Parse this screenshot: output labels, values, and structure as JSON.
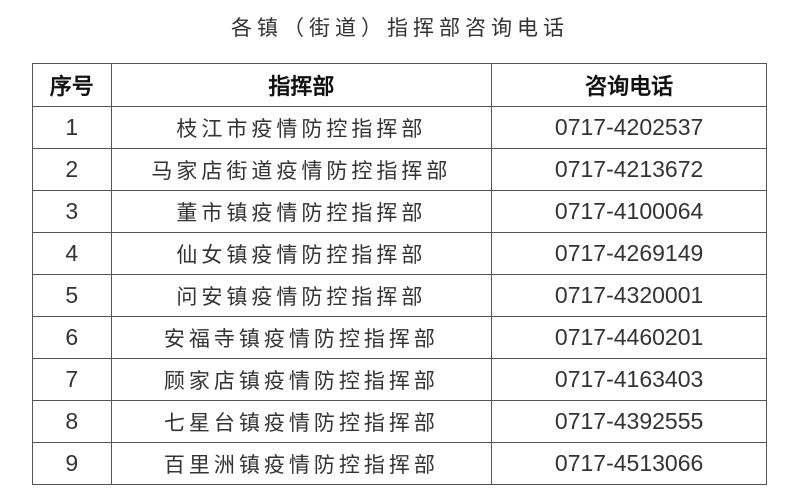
{
  "title": "各镇（街道）指挥部咨询电话",
  "table": {
    "headers": [
      "序号",
      "指挥部",
      "咨询电话"
    ],
    "rows": [
      {
        "no": "1",
        "name": "枝江市疫情防控指挥部",
        "phone": "0717-4202537"
      },
      {
        "no": "2",
        "name": "马家店街道疫情防控指挥部",
        "phone": "0717-4213672"
      },
      {
        "no": "3",
        "name": "董市镇疫情防控指挥部",
        "phone": "0717-4100064"
      },
      {
        "no": "4",
        "name": "仙女镇疫情防控指挥部",
        "phone": "0717-4269149"
      },
      {
        "no": "5",
        "name": "问安镇疫情防控指挥部",
        "phone": "0717-4320001"
      },
      {
        "no": "6",
        "name": "安福寺镇疫情防控指挥部",
        "phone": "0717-4460201"
      },
      {
        "no": "7",
        "name": "顾家店镇疫情防控指挥部",
        "phone": "0717-4163403"
      },
      {
        "no": "8",
        "name": "七星台镇疫情防控指挥部",
        "phone": "0717-4392555"
      },
      {
        "no": "9",
        "name": "百里洲镇疫情防控指挥部",
        "phone": "0717-4513066"
      }
    ]
  }
}
